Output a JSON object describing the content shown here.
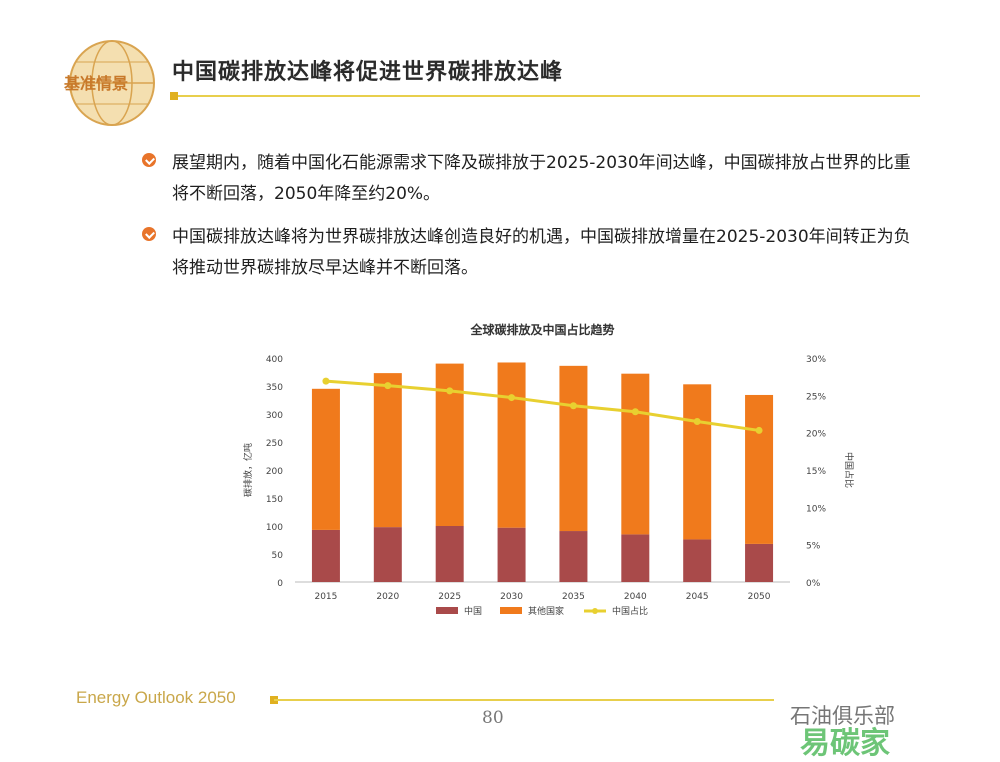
{
  "header": {
    "badge_text": "基准情景",
    "title": "中国碳排放达峰将促进世界碳排放达峰"
  },
  "bullets": [
    {
      "text": "展望期内，随着中国化石能源需求下降及碳排放于2025-2030年间达峰，中国碳排放占世界的比重将不断回落，2050年降至约20%。"
    },
    {
      "text": "中国碳排放达峰将为世界碳排放达峰创造良好的机遇，中国碳排放增量在2025-2030年间转正为负将推动世界碳排放尽早达峰并不断回落。"
    }
  ],
  "colors": {
    "china": "#a94a4a",
    "others": "#f07a1c",
    "share": "#e8d030",
    "accent": "#e8cf4c",
    "bullet": "#e8742a"
  },
  "chart_data": {
    "type": "bar",
    "title": "全球碳排放及中国占比趋势",
    "ylabel": "碳排放，亿吨",
    "y2label": "中国占比",
    "categories": [
      "2015",
      "2020",
      "2025",
      "2030",
      "2035",
      "2040",
      "2045",
      "2050"
    ],
    "ylim": [
      0,
      400
    ],
    "yticks": [
      0,
      50,
      100,
      150,
      200,
      250,
      300,
      350,
      400
    ],
    "y2lim": [
      0,
      30
    ],
    "y2ticks": [
      "0%",
      "5%",
      "10%",
      "15%",
      "20%",
      "25%",
      "30%"
    ],
    "stacked": true,
    "series": [
      {
        "name": "中国",
        "kind": "bar",
        "values": [
          93,
          98,
          100,
          97,
          91,
          85,
          76,
          68
        ]
      },
      {
        "name": "其他国家",
        "kind": "bar",
        "values": [
          252,
          275,
          290,
          295,
          295,
          287,
          277,
          266
        ]
      },
      {
        "name": "中国占比",
        "kind": "line",
        "axis": "right",
        "values": [
          26.9,
          26.3,
          25.6,
          24.7,
          23.6,
          22.8,
          21.5,
          20.3
        ]
      }
    ],
    "legend_position": "bottom",
    "grid": false
  },
  "footer": {
    "left": "Energy Outlook 2050",
    "page_number": "80",
    "watermark": "石油俱乐部",
    "watermark2": "易碳家"
  }
}
